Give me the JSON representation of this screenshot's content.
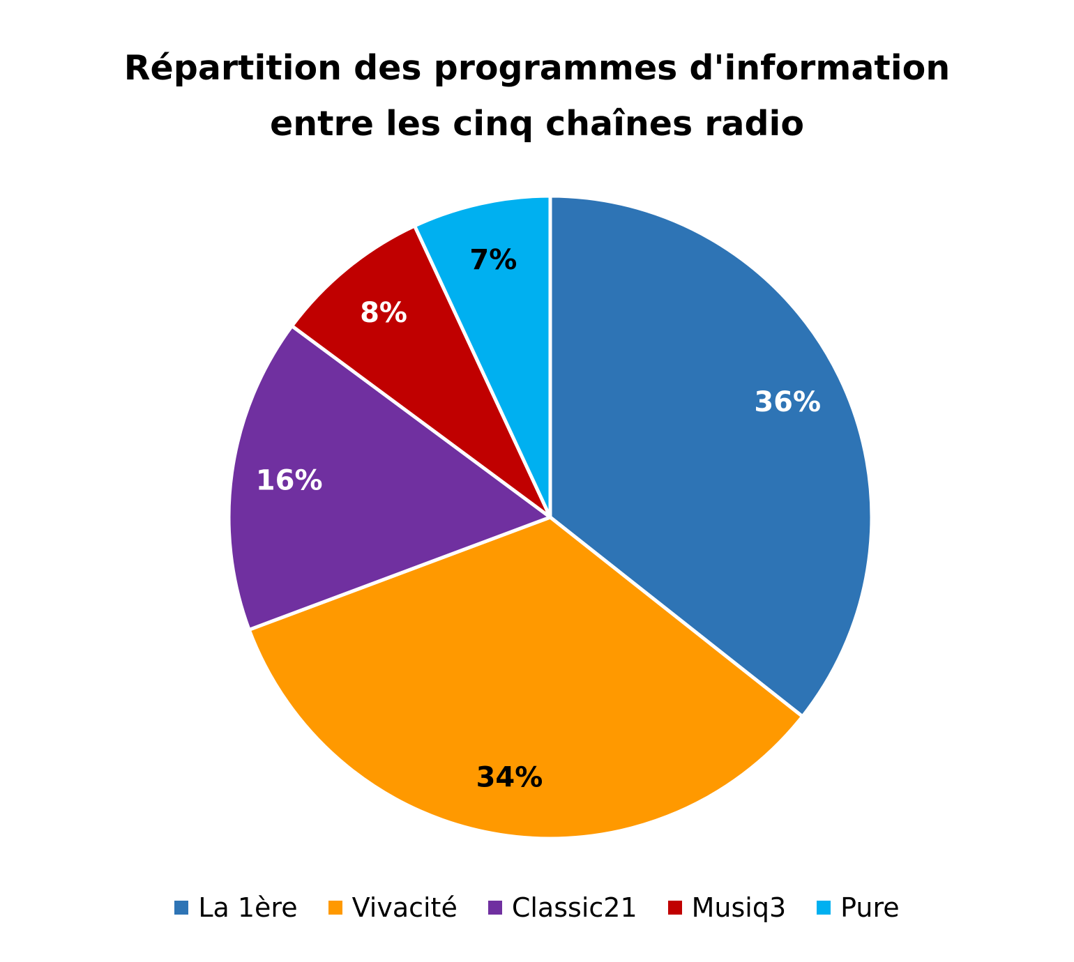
{
  "chart_data": {
    "type": "pie",
    "title_lines": [
      "Répartition des programmes d'information",
      "entre les cinq chaînes radio"
    ],
    "categories": [
      "La 1ère",
      "Vivacité",
      "Classic21",
      "Musiq3",
      "Pure"
    ],
    "values": [
      36,
      34,
      16,
      8,
      7
    ],
    "labels": [
      "36%",
      "34%",
      "16%",
      "8%",
      "7%"
    ],
    "colors": [
      "#2E74B5",
      "#FF9900",
      "#7030A0",
      "#C00000",
      "#00B0F0"
    ],
    "label_colors": [
      "#FFFFFF",
      "#000000",
      "#FFFFFF",
      "#FFFFFF",
      "#000000"
    ],
    "legend_position": "bottom"
  }
}
